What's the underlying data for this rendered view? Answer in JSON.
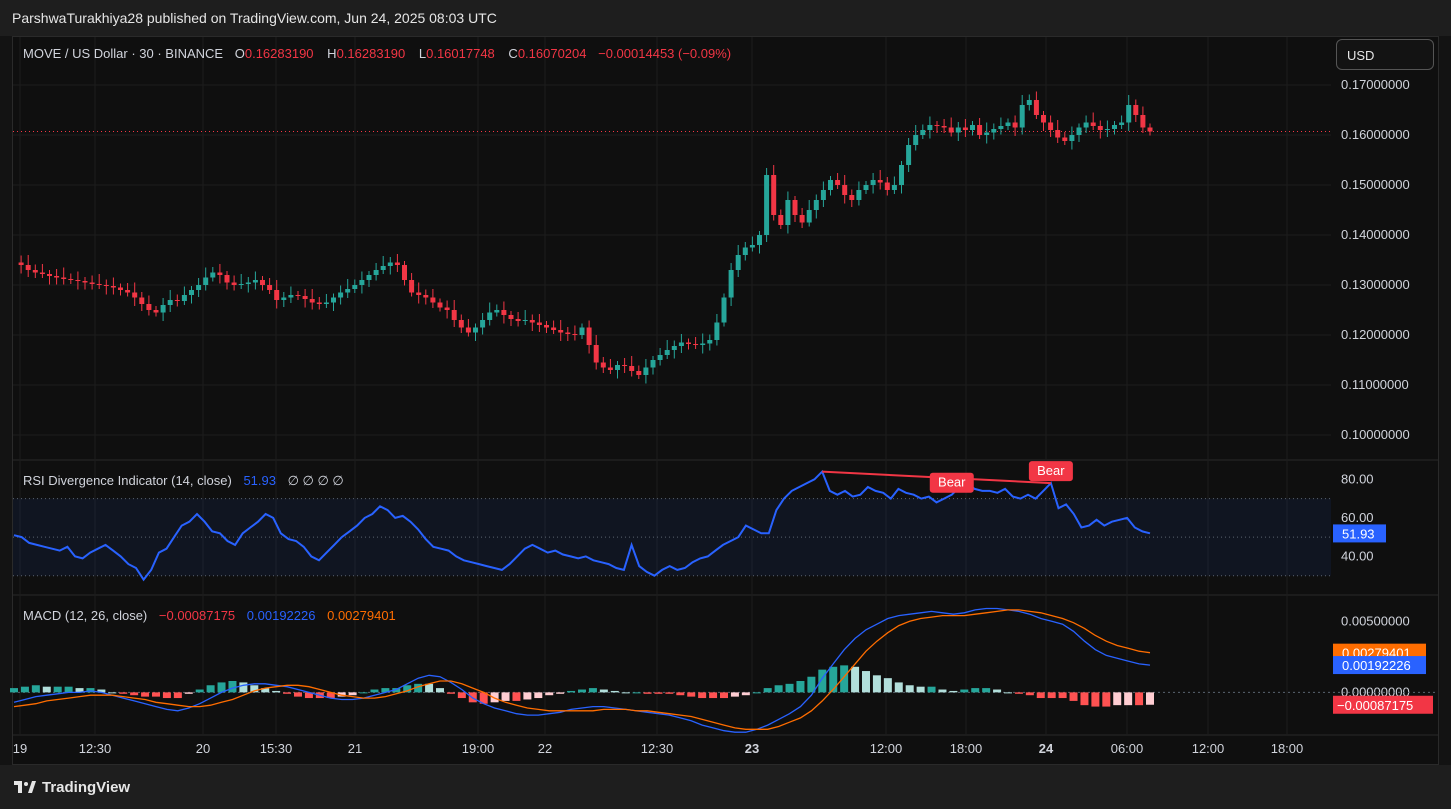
{
  "header": {
    "publish_text": "ParshwaTurakhiya28 published on TradingView.com, Jun 24, 2025 08:03 UTC"
  },
  "footer": {
    "brand": "TradingView"
  },
  "colors": {
    "up": "#26a69a",
    "down": "#f23645",
    "rsi": "#2962ff",
    "macd_signal": "#ff6d00",
    "bear": "#f23645"
  },
  "price_legend": {
    "symbol": "MOVE / US Dollar · 30 · BINANCE",
    "o_label": "O",
    "o": "0.16283190",
    "h_label": "H",
    "h": "0.16283190",
    "l_label": "L",
    "l": "0.16017748",
    "c_label": "C",
    "c": "0.16070204",
    "change": "−0.00014453 (−0.09%)"
  },
  "currency_button": "USD",
  "rsi_legend": {
    "name": "RSI Divergence Indicator (14, close)",
    "value": "51.93",
    "extra": "∅ ∅ ∅ ∅"
  },
  "macd_legend": {
    "name": "MACD (12, 26, close)",
    "hist": "−0.00087175",
    "macd": "0.00192226",
    "signal": "0.00279401"
  },
  "time_axis": [
    "19",
    "12:30",
    "20",
    "15:30",
    "21",
    "19:00",
    "22",
    "12:30",
    "23",
    "12:00",
    "18:00",
    "24",
    "06:00",
    "12:00",
    "18:00"
  ],
  "chart_data": [
    {
      "type": "candlestick",
      "title": "MOVE / US Dollar · 30 · BINANCE",
      "ylim": [
        0.095,
        0.175
      ],
      "y_ticks": [
        "0.17000000",
        "0.16000000",
        "0.15000000",
        "0.14000000",
        "0.13000000",
        "0.12000000",
        "0.11000000",
        "0.10000000"
      ],
      "last_price": 0.16070204,
      "close_path": [
        0.1345,
        0.134,
        0.133,
        0.1325,
        0.1322,
        0.1318,
        0.1315,
        0.1312,
        0.131,
        0.1308,
        0.1305,
        0.1302,
        0.13,
        0.1298,
        0.1295,
        0.129,
        0.1285,
        0.1275,
        0.1262,
        0.125,
        0.1245,
        0.126,
        0.127,
        0.1268,
        0.128,
        0.129,
        0.13,
        0.1315,
        0.1325,
        0.132,
        0.1305,
        0.13,
        0.1302,
        0.1305,
        0.131,
        0.13,
        0.129,
        0.127,
        0.1275,
        0.128,
        0.1278,
        0.1272,
        0.1265,
        0.1262,
        0.1265,
        0.1275,
        0.1285,
        0.1292,
        0.13,
        0.131,
        0.132,
        0.133,
        0.1338,
        0.1345,
        0.134,
        0.131,
        0.1285,
        0.128,
        0.1275,
        0.1265,
        0.1255,
        0.125,
        0.123,
        0.1215,
        0.1205,
        0.1215,
        0.123,
        0.1245,
        0.125,
        0.124,
        0.1232,
        0.1228,
        0.123,
        0.1225,
        0.122,
        0.1215,
        0.121,
        0.1205,
        0.1202,
        0.12,
        0.1215,
        0.118,
        0.1145,
        0.1135,
        0.113,
        0.114,
        0.1138,
        0.1128,
        0.112,
        0.1135,
        0.115,
        0.116,
        0.117,
        0.1178,
        0.1185,
        0.1182,
        0.118,
        0.1183,
        0.119,
        0.1225,
        0.1275,
        0.133,
        0.136,
        0.1375,
        0.138,
        0.14,
        0.152,
        0.144,
        0.142,
        0.147,
        0.144,
        0.1425,
        0.145,
        0.147,
        0.149,
        0.151,
        0.15,
        0.148,
        0.147,
        0.149,
        0.15,
        0.151,
        0.1505,
        0.149,
        0.15,
        0.154,
        0.158,
        0.16,
        0.161,
        0.162,
        0.1618,
        0.1615,
        0.1605,
        0.1615,
        0.161,
        0.162,
        0.16,
        0.1605,
        0.1612,
        0.1618,
        0.1625,
        0.1615,
        0.166,
        0.167,
        0.164,
        0.1625,
        0.161,
        0.1595,
        0.1588,
        0.16,
        0.1615,
        0.1625,
        0.1618,
        0.161,
        0.1612,
        0.162,
        0.1625,
        0.166,
        0.164,
        0.1615,
        0.1607
      ]
    },
    {
      "type": "line",
      "title": "RSI Divergence Indicator (14, close)",
      "ylim": [
        20,
        90
      ],
      "y_ticks": [
        "80.00",
        "60.00",
        "40.00"
      ],
      "bands": [
        30,
        50,
        70
      ],
      "last_value": "51.93",
      "annotations": [
        "Bear",
        "Bear"
      ],
      "values": [
        51,
        50,
        47,
        46,
        45,
        44,
        43,
        45,
        40,
        39,
        42,
        44,
        46,
        43,
        40,
        36,
        34,
        28,
        33,
        42,
        44,
        50,
        56,
        58,
        62,
        58,
        53,
        52,
        48,
        46,
        52,
        55,
        58,
        62,
        60,
        52,
        49,
        48,
        45,
        40,
        38,
        42,
        46,
        50,
        53,
        56,
        60,
        62,
        66,
        64,
        60,
        61,
        58,
        54,
        49,
        45,
        44,
        43,
        40,
        38,
        37,
        36,
        35,
        34,
        33,
        36,
        40,
        44,
        46,
        44,
        42,
        43,
        41,
        40,
        39,
        40,
        38,
        37,
        36,
        34,
        33,
        46,
        35,
        32,
        30,
        33,
        35,
        33,
        34,
        37,
        39,
        40,
        43,
        46,
        48,
        50,
        56,
        54,
        52,
        52,
        64,
        70,
        74,
        76,
        78,
        80,
        84,
        74,
        72,
        74,
        71,
        72,
        76,
        74,
        73,
        70,
        75,
        73,
        72,
        70,
        71,
        68,
        70,
        72,
        76,
        78,
        75,
        74,
        74,
        73,
        75,
        71,
        70,
        72,
        70,
        74,
        78,
        65,
        67,
        62,
        55,
        56,
        59,
        56,
        58,
        59,
        60,
        55,
        53,
        52
      ]
    },
    {
      "type": "line+histogram",
      "title": "MACD (12, 26, close)",
      "ylim": [
        -0.003,
        0.0065
      ],
      "y_ticks": [
        "0.00500000",
        "0.00000000"
      ],
      "series": [
        {
          "name": "MACD",
          "values": [
            -0.0007,
            -0.0005,
            -0.0003,
            -0.0002,
            -0.0001,
            0.0,
            0.0,
            0.0001,
            0.0,
            -0.0002,
            -0.0004,
            -0.0006,
            -0.0008,
            -0.001,
            -0.0012,
            -0.0013,
            -0.0011,
            -0.0008,
            -0.0004,
            0.0,
            0.0003,
            0.0005,
            0.0006,
            0.0006,
            0.0005,
            0.0004,
            0.0002,
            0.0,
            -0.0002,
            -0.0004,
            -0.0005,
            -0.0005,
            -0.0004,
            -0.0002,
            0.0,
            0.0002,
            0.0006,
            0.001,
            0.0012,
            0.0011,
            0.0007,
            0.0002,
            -0.0004,
            -0.0008,
            -0.0011,
            -0.0013,
            -0.0015,
            -0.0016,
            -0.0016,
            -0.0015,
            -0.0014,
            -0.0012,
            -0.0011,
            -0.001,
            -0.001,
            -0.0011,
            -0.0012,
            -0.0013,
            -0.0014,
            -0.0015,
            -0.0016,
            -0.0018,
            -0.002,
            -0.0023,
            -0.0025,
            -0.0027,
            -0.0028,
            -0.0028,
            -0.0026,
            -0.0023,
            -0.0019,
            -0.0015,
            -0.001,
            -0.0002,
            0.001,
            0.002,
            0.003,
            0.0038,
            0.0044,
            0.0048,
            0.0052,
            0.0054,
            0.0055,
            0.0056,
            0.0057,
            0.0056,
            0.0055,
            0.0056,
            0.0058,
            0.0059,
            0.0059,
            0.0058,
            0.0057,
            0.0055,
            0.0052,
            0.005,
            0.0048,
            0.0043,
            0.0036,
            0.003,
            0.0026,
            0.0024,
            0.0022,
            0.002,
            0.00192226
          ]
        },
        {
          "name": "Signal",
          "values": [
            -0.001,
            -0.0009,
            -0.0008,
            -0.0006,
            -0.0005,
            -0.0004,
            -0.0003,
            -0.0002,
            -0.0002,
            -0.0002,
            -0.0003,
            -0.0004,
            -0.0005,
            -0.0007,
            -0.0008,
            -0.0009,
            -0.001,
            -0.001,
            -0.0009,
            -0.0007,
            -0.0005,
            -0.0002,
            0.0001,
            0.0003,
            0.0004,
            0.0005,
            0.0005,
            0.0004,
            0.0002,
            0.0,
            -0.0002,
            -0.0003,
            -0.0004,
            -0.0004,
            -0.0003,
            -0.0001,
            0.0001,
            0.0004,
            0.0006,
            0.0008,
            0.0008,
            0.0006,
            0.0003,
            0.0,
            -0.0004,
            -0.0007,
            -0.0009,
            -0.0011,
            -0.0012,
            -0.0013,
            -0.0013,
            -0.0013,
            -0.0013,
            -0.0013,
            -0.0012,
            -0.0012,
            -0.0012,
            -0.0013,
            -0.0013,
            -0.0014,
            -0.0015,
            -0.0016,
            -0.0017,
            -0.0019,
            -0.0021,
            -0.0023,
            -0.0025,
            -0.0026,
            -0.0026,
            -0.0026,
            -0.0024,
            -0.0021,
            -0.0018,
            -0.0013,
            -0.0006,
            0.0002,
            0.0011,
            0.002,
            0.0029,
            0.0036,
            0.0042,
            0.0047,
            0.005,
            0.0052,
            0.0053,
            0.0054,
            0.0054,
            0.0054,
            0.0055,
            0.0056,
            0.0057,
            0.0058,
            0.0058,
            0.0057,
            0.0056,
            0.0054,
            0.0052,
            0.0049,
            0.0045,
            0.004,
            0.0036,
            0.0033,
            0.0031,
            0.0029,
            0.00279401
          ]
        }
      ],
      "histogram_last": -0.00087175
    }
  ]
}
